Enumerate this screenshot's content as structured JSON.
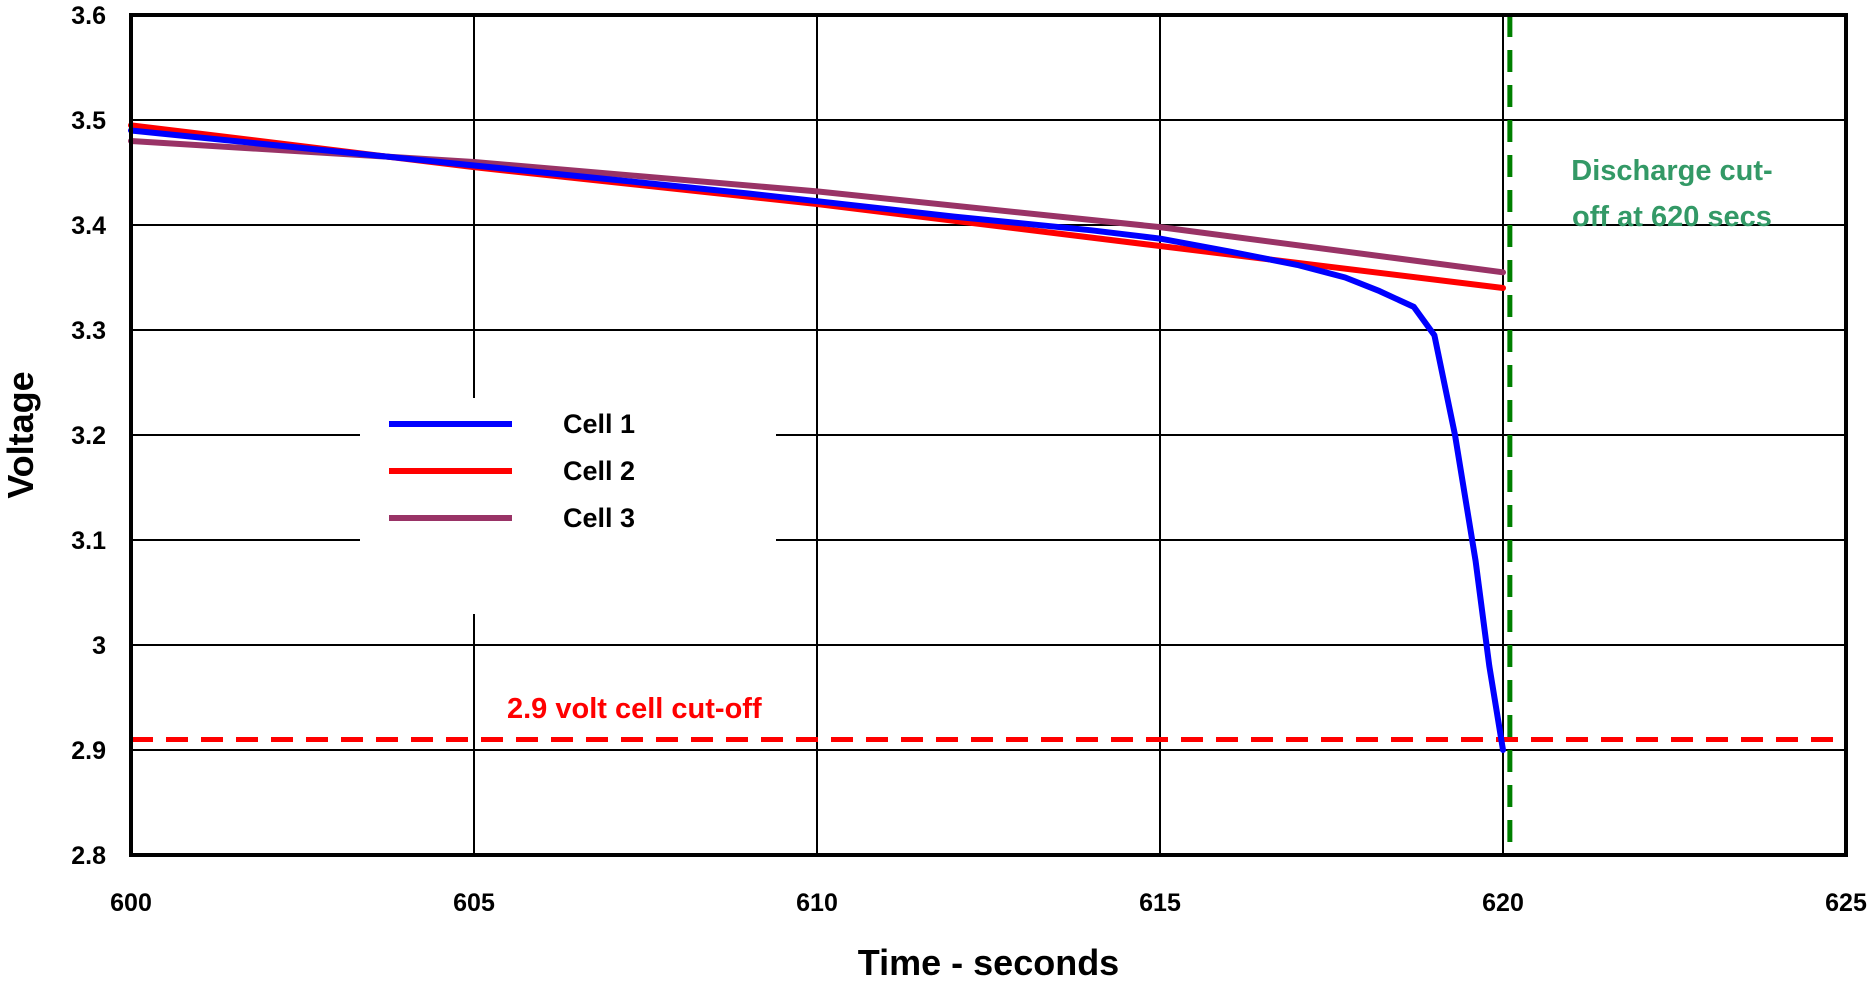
{
  "chart_data": {
    "type": "line",
    "xlabel": "Time - seconds",
    "ylabel": "Voltage",
    "xlim": [
      600,
      625
    ],
    "ylim": [
      2.8,
      3.6
    ],
    "x_ticks": [
      "600",
      "605",
      "610",
      "615",
      "620",
      "625"
    ],
    "y_ticks": [
      "2.8",
      "2.9",
      "3",
      "3.1",
      "3.2",
      "3.3",
      "3.4",
      "3.5",
      "3.6"
    ],
    "x_tick_values": [
      600,
      605,
      610,
      615,
      620,
      625
    ],
    "y_tick_values": [
      2.8,
      2.9,
      3.0,
      3.1,
      3.2,
      3.3,
      3.4,
      3.5,
      3.6
    ],
    "grid": true,
    "legend_position": "center-left",
    "series": [
      {
        "name": "Cell 1",
        "color": "#0000ff",
        "points": [
          [
            600,
            3.49
          ],
          [
            603,
            3.47
          ],
          [
            606,
            3.45
          ],
          [
            609,
            3.43
          ],
          [
            612,
            3.408
          ],
          [
            614,
            3.395
          ],
          [
            615,
            3.387
          ],
          [
            616,
            3.375
          ],
          [
            617,
            3.362
          ],
          [
            617.7,
            3.35
          ],
          [
            618.2,
            3.337
          ],
          [
            618.7,
            3.322
          ],
          [
            619.0,
            3.295
          ],
          [
            619.3,
            3.2
          ],
          [
            619.6,
            3.08
          ],
          [
            619.8,
            2.98
          ],
          [
            620.0,
            2.9
          ]
        ]
      },
      {
        "name": "Cell 2",
        "color": "#ff0000",
        "points": [
          [
            600,
            3.495
          ],
          [
            605,
            3.455
          ],
          [
            610,
            3.42
          ],
          [
            615,
            3.38
          ],
          [
            620,
            3.34
          ]
        ]
      },
      {
        "name": "Cell 3",
        "color": "#993366",
        "points": [
          [
            600,
            3.48
          ],
          [
            605,
            3.46
          ],
          [
            610,
            3.432
          ],
          [
            615,
            3.398
          ],
          [
            620,
            3.355
          ]
        ]
      }
    ],
    "reference_lines": [
      {
        "orientation": "horizontal",
        "value": 2.91,
        "color": "#ff0000",
        "label": "2.9 volt cell cut-off"
      },
      {
        "orientation": "vertical",
        "value": 620.1,
        "color": "#008000",
        "label_lines": [
          "Discharge cut-",
          "off at 620 secs"
        ]
      }
    ],
    "annotation_colors": {
      "cutoff_voltage": "#ff0000",
      "discharge_cutoff": "#339966"
    }
  }
}
